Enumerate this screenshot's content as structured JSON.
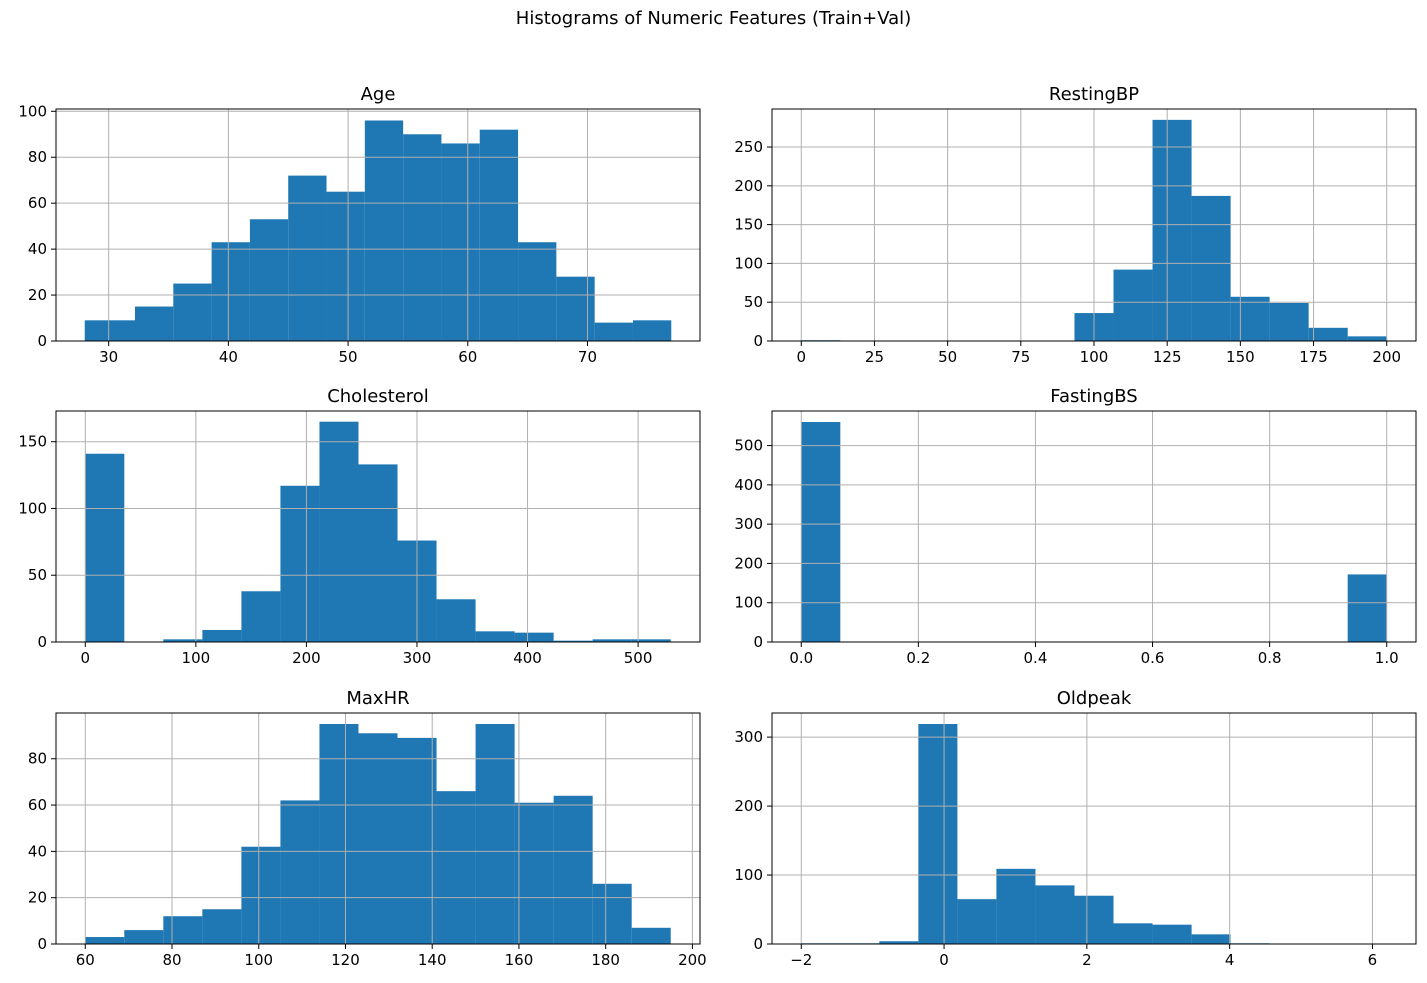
{
  "figure": {
    "suptitle": "Histograms of Numeric Features (Train+Val)"
  },
  "colors": {
    "bar": "#1f77b4",
    "grid": "#b0b0b0",
    "axis": "#000000",
    "background": "#ffffff"
  },
  "chart_data": [
    {
      "type": "bar",
      "title": "Age",
      "xlabel": "",
      "ylabel": "",
      "bin_edges": [
        28.0,
        32.2,
        35.4,
        38.6,
        41.8,
        45.0,
        48.2,
        51.4,
        54.6,
        57.8,
        61.0,
        64.2,
        67.4,
        70.6,
        73.8,
        77.0
      ],
      "values": [
        9,
        15,
        25,
        43,
        53,
        72,
        65,
        96,
        90,
        86,
        92,
        43,
        28,
        8,
        9
      ],
      "xlim": [
        25.6,
        79.4
      ],
      "ylim": [
        0,
        101
      ],
      "xticks": [
        30,
        40,
        50,
        60,
        70
      ],
      "yticks": [
        0,
        20,
        40,
        60,
        80,
        100
      ],
      "grid": true
    },
    {
      "type": "bar",
      "title": "RestingBP",
      "xlabel": "",
      "ylabel": "",
      "bin_edges": [
        0,
        13.33,
        26.67,
        40,
        53.33,
        66.67,
        80,
        93.33,
        106.67,
        120,
        133.33,
        146.67,
        160,
        173.33,
        186.67,
        200
      ],
      "values": [
        1,
        0,
        0,
        0,
        0,
        0,
        0,
        36,
        92,
        285,
        187,
        57,
        49,
        17,
        6
      ],
      "xlim": [
        -10,
        210
      ],
      "ylim": [
        0,
        299
      ],
      "xticks": [
        0,
        25,
        50,
        75,
        100,
        125,
        150,
        175,
        200
      ],
      "yticks": [
        0,
        50,
        100,
        150,
        200,
        250
      ],
      "grid": true
    },
    {
      "type": "bar",
      "title": "Cholesterol",
      "xlabel": "",
      "ylabel": "",
      "bin_edges": [
        0,
        35.3,
        70.6,
        105.9,
        141.2,
        176.5,
        211.8,
        247.1,
        282.4,
        317.7,
        353,
        388.3,
        423.6,
        458.9,
        494.2,
        529.5
      ],
      "values": [
        141,
        0,
        2,
        9,
        38,
        117,
        165,
        133,
        76,
        32,
        8,
        7,
        1,
        2,
        2
      ],
      "xlim": [
        -26.5,
        556
      ],
      "ylim": [
        0,
        173
      ],
      "xticks": [
        0,
        100,
        200,
        300,
        400,
        500
      ],
      "yticks": [
        0,
        50,
        100,
        150
      ],
      "grid": true
    },
    {
      "type": "bar",
      "title": "FastingBS",
      "xlabel": "",
      "ylabel": "",
      "bin_edges": [
        0,
        0.0667,
        0.1333,
        0.2,
        0.2667,
        0.3333,
        0.4,
        0.4667,
        0.5333,
        0.6,
        0.6667,
        0.7333,
        0.8,
        0.8667,
        0.9333,
        1.0
      ],
      "values": [
        560,
        0,
        0,
        0,
        0,
        0,
        0,
        0,
        0,
        0,
        0,
        0,
        0,
        0,
        172
      ],
      "xlim": [
        -0.05,
        1.05
      ],
      "ylim": [
        0,
        588
      ],
      "xticks": [
        "0.0",
        "0.2",
        "0.4",
        "0.6",
        "0.8",
        "1.0"
      ],
      "yticks": [
        0,
        100,
        200,
        300,
        400,
        500
      ],
      "grid": true
    },
    {
      "type": "bar",
      "title": "MaxHR",
      "xlabel": "",
      "ylabel": "",
      "bin_edges": [
        60,
        69,
        78,
        87,
        96,
        105,
        114,
        123,
        132,
        141,
        150,
        159,
        168,
        177,
        186,
        195
      ],
      "values": [
        3,
        6,
        12,
        15,
        42,
        62,
        95,
        91,
        89,
        66,
        95,
        61,
        64,
        26,
        7
      ],
      "xlim": [
        53.25,
        201.75
      ],
      "ylim": [
        0,
        99.75
      ],
      "xticks": [
        60,
        80,
        100,
        120,
        140,
        160,
        180,
        200
      ],
      "yticks": [
        0,
        20,
        40,
        60,
        80
      ],
      "grid": true
    },
    {
      "type": "bar",
      "title": "Oldpeak",
      "xlabel": "",
      "ylabel": "",
      "bin_edges": [
        -2.0,
        -1.453,
        -0.907,
        -0.36,
        0.187,
        0.733,
        1.28,
        1.827,
        2.373,
        2.92,
        3.467,
        4.013,
        4.56,
        5.107,
        5.653,
        6.2
      ],
      "values": [
        1,
        1,
        4,
        319,
        65,
        109,
        85,
        70,
        30,
        28,
        14,
        1,
        0,
        0,
        0
      ],
      "xlim": [
        -2.41,
        6.61
      ],
      "ylim": [
        0,
        334.95
      ],
      "xticks": [
        "−2",
        "0",
        "2",
        "4",
        "6"
      ],
      "yticks": [
        0,
        100,
        200,
        300
      ],
      "grid": true
    }
  ]
}
